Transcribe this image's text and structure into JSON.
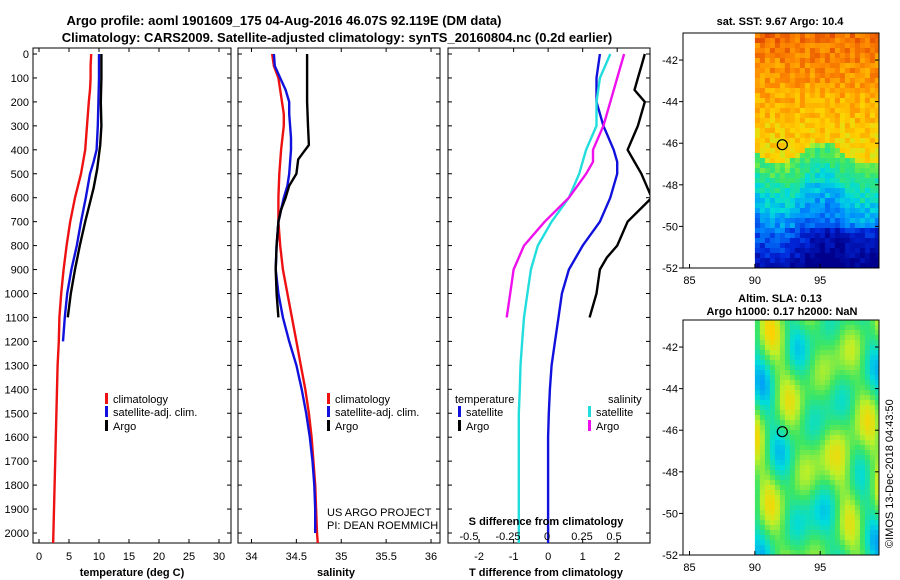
{
  "title_line1": "Argo profile: aoml 1901609_175 04-Aug-2016 46.07S 92.119E (DM data)",
  "title_line2": "Climatology: CARS2009. Satellite-adjusted climatology: synTS_20160804.nc (0.2d earlier)",
  "credit_line1": "US ARGO PROJECT",
  "credit_line2": "PI: DEAN ROEMMICH",
  "footer_vertical": "©IMOS 13-Dec-2018 04:43:50",
  "colors": {
    "climatology": "#ee1111",
    "satellite": "#1111dd",
    "argo": "#000000",
    "argo_salinity": "#ee11ee",
    "satellite_salinity": "#22dddd"
  },
  "chart_data": [
    {
      "type": "line",
      "id": "temperature",
      "xlabel": "temperature (deg C)",
      "ylabel": "",
      "xlim": [
        -1,
        32
      ],
      "ylim": [
        2060,
        0
      ],
      "xticks": [
        "0",
        "5",
        "10",
        "15",
        "20",
        "25",
        "30"
      ],
      "yticks": [
        "0",
        "100",
        "200",
        "300",
        "400",
        "500",
        "600",
        "700",
        "800",
        "900",
        "1000",
        "1100",
        "1200",
        "1300",
        "1400",
        "1500",
        "1600",
        "1700",
        "1800",
        "1900",
        "2000"
      ],
      "legend": [
        "climatology",
        "satellite-adj. clim.",
        "Argo"
      ],
      "series": [
        {
          "name": "climatology",
          "color_key": "climatology",
          "points": [
            [
              8.7,
              0
            ],
            [
              8.6,
              50
            ],
            [
              8.6,
              100
            ],
            [
              8.5,
              150
            ],
            [
              8.3,
              200
            ],
            [
              8.0,
              300
            ],
            [
              7.7,
              400
            ],
            [
              7.0,
              500
            ],
            [
              6.0,
              600
            ],
            [
              5.2,
              700
            ],
            [
              4.6,
              800
            ],
            [
              4.1,
              900
            ],
            [
              3.7,
              1000
            ],
            [
              3.4,
              1100
            ],
            [
              3.3,
              1200
            ],
            [
              3.1,
              1300
            ],
            [
              3.0,
              1400
            ],
            [
              2.9,
              1500
            ],
            [
              2.8,
              1600
            ],
            [
              2.7,
              1700
            ],
            [
              2.6,
              1800
            ],
            [
              2.5,
              1900
            ],
            [
              2.4,
              2000
            ],
            [
              2.35,
              2050
            ]
          ]
        },
        {
          "name": "satellite-adj. clim.",
          "color_key": "satellite",
          "points": [
            [
              10.0,
              0
            ],
            [
              10.0,
              100
            ],
            [
              9.9,
              200
            ],
            [
              9.8,
              300
            ],
            [
              9.6,
              400
            ],
            [
              9.1,
              450
            ],
            [
              8.5,
              500
            ],
            [
              7.8,
              600
            ],
            [
              7.0,
              700
            ],
            [
              6.3,
              800
            ],
            [
              5.4,
              900
            ],
            [
              4.7,
              1000
            ],
            [
              4.3,
              1100
            ],
            [
              4.0,
              1200
            ]
          ]
        },
        {
          "name": "Argo",
          "color_key": "argo",
          "points": [
            [
              10.4,
              0
            ],
            [
              10.4,
              100
            ],
            [
              10.3,
              200
            ],
            [
              10.4,
              300
            ],
            [
              10.2,
              380
            ],
            [
              10.0,
              420
            ],
            [
              9.7,
              480
            ],
            [
              9.4,
              520
            ],
            [
              9.1,
              560
            ],
            [
              8.5,
              620
            ],
            [
              7.7,
              700
            ],
            [
              6.8,
              800
            ],
            [
              6.0,
              900
            ],
            [
              5.3,
              1000
            ],
            [
              4.8,
              1100
            ]
          ]
        }
      ]
    },
    {
      "type": "line",
      "id": "salinity",
      "xlabel": "salinity",
      "ylabel": "",
      "xlim": [
        33.85,
        36.1
      ],
      "ylim": [
        2060,
        0
      ],
      "xticks": [
        "34",
        "34.5",
        "35",
        "35.5",
        "36"
      ],
      "legend": [
        "climatology",
        "satellite-adj. clim.",
        "Argo"
      ],
      "series": [
        {
          "name": "climatology",
          "color_key": "climatology",
          "points": [
            [
              34.23,
              0
            ],
            [
              34.25,
              50
            ],
            [
              34.3,
              100
            ],
            [
              34.32,
              150
            ],
            [
              34.34,
              200
            ],
            [
              34.36,
              250
            ],
            [
              34.36,
              300
            ],
            [
              34.33,
              400
            ],
            [
              34.31,
              500
            ],
            [
              34.3,
              600
            ],
            [
              34.3,
              700
            ],
            [
              34.32,
              800
            ],
            [
              34.35,
              900
            ],
            [
              34.4,
              1000
            ],
            [
              34.45,
              1100
            ],
            [
              34.5,
              1200
            ],
            [
              34.55,
              1300
            ],
            [
              34.6,
              1400
            ],
            [
              34.64,
              1500
            ],
            [
              34.67,
              1600
            ],
            [
              34.69,
              1700
            ],
            [
              34.71,
              1800
            ],
            [
              34.72,
              1900
            ],
            [
              34.73,
              2000
            ],
            [
              34.74,
              2050
            ]
          ]
        },
        {
          "name": "satellite-adj. clim.",
          "color_key": "satellite",
          "points": [
            [
              34.25,
              0
            ],
            [
              34.26,
              50
            ],
            [
              34.32,
              100
            ],
            [
              34.38,
              150
            ],
            [
              34.42,
              200
            ],
            [
              34.42,
              250
            ],
            [
              34.43,
              300
            ],
            [
              34.44,
              350
            ],
            [
              34.44,
              400
            ],
            [
              34.43,
              450
            ],
            [
              34.42,
              500
            ],
            [
              34.4,
              550
            ],
            [
              34.36,
              600
            ],
            [
              34.33,
              650
            ],
            [
              34.3,
              700
            ],
            [
              34.28,
              800
            ],
            [
              34.27,
              900
            ],
            [
              34.3,
              1000
            ],
            [
              34.35,
              1100
            ],
            [
              34.42,
              1200
            ],
            [
              34.5,
              1300
            ],
            [
              34.56,
              1400
            ],
            [
              34.61,
              1500
            ],
            [
              34.65,
              1600
            ],
            [
              34.68,
              1700
            ],
            [
              34.7,
              1800
            ],
            [
              34.71,
              1900
            ],
            [
              34.71,
              2000
            ]
          ]
        },
        {
          "name": "Argo",
          "color_key": "argo",
          "points": [
            [
              34.62,
              0
            ],
            [
              34.62,
              100
            ],
            [
              34.62,
              200
            ],
            [
              34.63,
              300
            ],
            [
              34.64,
              380
            ],
            [
              34.58,
              410
            ],
            [
              34.52,
              440
            ],
            [
              34.5,
              500
            ],
            [
              34.42,
              550
            ],
            [
              34.38,
              600
            ],
            [
              34.33,
              650
            ],
            [
              34.3,
              700
            ],
            [
              34.28,
              800
            ],
            [
              34.27,
              900
            ],
            [
              34.28,
              1000
            ],
            [
              34.3,
              1100
            ]
          ]
        }
      ]
    },
    {
      "type": "line",
      "id": "difference",
      "xlabel": "T difference from climatology",
      "xlabel_top": "S difference from climatology",
      "ylabel": "",
      "xlim": [
        -2.9,
        2.95
      ],
      "ylim": [
        2060,
        0
      ],
      "xticks": [
        "-2",
        "-1",
        "0",
        "1",
        "2"
      ],
      "xticks_s": [
        "-0.5",
        "-0.25",
        "0",
        "0.25",
        "0.5"
      ],
      "legend_temperature_title": "temperature",
      "legend_salinity_title": "salinity",
      "legend_temperature": [
        "satellite",
        "Argo"
      ],
      "legend_salinity": [
        "satellite",
        "Argo"
      ],
      "series": [
        {
          "name": "T satellite",
          "color_key": "satellite",
          "points": [
            [
              1.5,
              0
            ],
            [
              1.4,
              100
            ],
            [
              1.4,
              200
            ],
            [
              1.6,
              300
            ],
            [
              1.9,
              400
            ],
            [
              2.0,
              450
            ],
            [
              2.0,
              500
            ],
            [
              1.8,
              600
            ],
            [
              1.5,
              700
            ],
            [
              1.0,
              800
            ],
            [
              0.6,
              900
            ],
            [
              0.4,
              1000
            ],
            [
              0.3,
              1100
            ],
            [
              0.2,
              1200
            ],
            [
              0.1,
              1300
            ],
            [
              0.05,
              1400
            ],
            [
              0.02,
              1500
            ],
            [
              0.0,
              1600
            ],
            [
              0.0,
              1800
            ],
            [
              0.0,
              2050
            ]
          ]
        },
        {
          "name": "T Argo",
          "color_key": "argo",
          "points": [
            [
              2.8,
              0
            ],
            [
              2.7,
              50
            ],
            [
              2.6,
              100
            ],
            [
              2.5,
              150
            ],
            [
              2.8,
              200
            ],
            [
              2.6,
              300
            ],
            [
              2.3,
              400
            ],
            [
              2.7,
              500
            ],
            [
              3.0,
              600
            ],
            [
              2.3,
              700
            ],
            [
              2.0,
              800
            ],
            [
              1.7,
              850
            ],
            [
              1.5,
              900
            ],
            [
              1.4,
              1000
            ],
            [
              1.2,
              1100
            ]
          ]
        },
        {
          "name": "S satellite",
          "color_key": "satellite_salinity",
          "points": [
            [
              1.8,
              0
            ],
            [
              1.5,
              100
            ],
            [
              1.4,
              200
            ],
            [
              1.4,
              300
            ],
            [
              1.1,
              400
            ],
            [
              0.9,
              500
            ],
            [
              0.6,
              600
            ],
            [
              0.1,
              700
            ],
            [
              -0.3,
              800
            ],
            [
              -0.5,
              900
            ],
            [
              -0.6,
              1000
            ],
            [
              -0.7,
              1100
            ],
            [
              -0.75,
              1200
            ],
            [
              -0.8,
              1300
            ],
            [
              -0.82,
              1400
            ],
            [
              -0.85,
              1500
            ],
            [
              -0.85,
              1600
            ],
            [
              -0.85,
              1800
            ],
            [
              -0.85,
              2050
            ]
          ]
        },
        {
          "name": "S Argo",
          "color_key": "argo_salinity",
          "points": [
            [
              2.2,
              0
            ],
            [
              2.0,
              100
            ],
            [
              1.8,
              200
            ],
            [
              1.6,
              300
            ],
            [
              1.3,
              400
            ],
            [
              1.3,
              450
            ],
            [
              1.1,
              500
            ],
            [
              0.6,
              600
            ],
            [
              -0.1,
              700
            ],
            [
              -0.7,
              800
            ],
            [
              -1.0,
              900
            ],
            [
              -1.1,
              1000
            ],
            [
              -1.2,
              1100
            ]
          ]
        }
      ]
    },
    {
      "type": "heatmap",
      "id": "sst_map",
      "title": "sat. SST: 9.67 Argo: 10.4",
      "xticks": [
        "85",
        "90",
        "95"
      ],
      "yticks": [
        "-42",
        "-44",
        "-46",
        "-48",
        "-50",
        "-52"
      ],
      "xlim": [
        84.5,
        99.5
      ],
      "ylim": [
        -52,
        -40.7
      ],
      "marker": [
        92.1,
        -46.07
      ],
      "data_lon_min": 90
    },
    {
      "type": "heatmap",
      "id": "sla_map",
      "title": "Altim. SLA: 0.13",
      "subtitle": "Argo h1000: 0.17 h2000: NaN",
      "xticks": [
        "85",
        "90",
        "95"
      ],
      "yticks": [
        "-42",
        "-44",
        "-46",
        "-48",
        "-50",
        "-52"
      ],
      "xlim": [
        84.5,
        99.5
      ],
      "ylim": [
        -52,
        -40.7
      ],
      "marker": [
        92.1,
        -46.07
      ],
      "data_lon_min": 90
    }
  ]
}
